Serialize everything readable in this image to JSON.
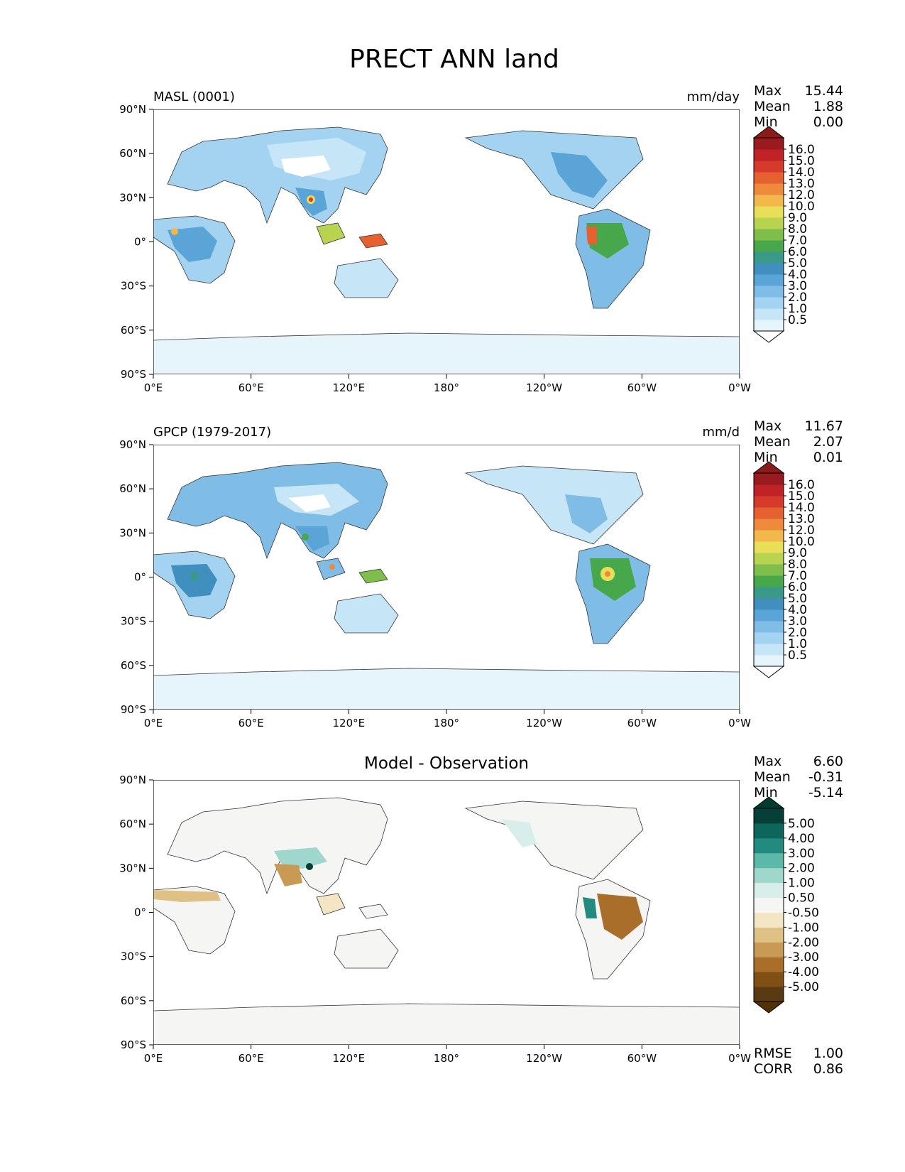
{
  "page": {
    "title": "PRECT ANN land"
  },
  "panels": [
    {
      "left_label": "MASL (0001)",
      "right_label": "mm/day",
      "title": "",
      "stats": [
        {
          "label": "Max",
          "value": "15.44"
        },
        {
          "label": "Mean",
          "value": "1.88"
        },
        {
          "label": "Min",
          "value": "0.00"
        }
      ],
      "colorbar": {
        "ticks": [
          "0.5",
          "1.0",
          "2.0",
          "3.0",
          "4.0",
          "5.0",
          "6.0",
          "7.0",
          "8.0",
          "9.0",
          "10.0",
          "12.0",
          "13.0",
          "14.0",
          "15.0",
          "16.0"
        ],
        "colors": [
          "#e6f4fb",
          "#c6e6f7",
          "#a3d3f0",
          "#7fbde6",
          "#5aa4d8",
          "#418fbf",
          "#3a9a8a",
          "#46a84b",
          "#7fbe4b",
          "#b8d34f",
          "#e9de58",
          "#f2b84b",
          "#ef8a3c",
          "#e5612f",
          "#d63a2a",
          "#c02227",
          "#9a1b1f"
        ],
        "under_color": "#ffffff",
        "over_color": "#8b1a1a"
      },
      "extra_stats": []
    },
    {
      "left_label": "GPCP (1979-2017)",
      "right_label": "mm/d",
      "title": "",
      "stats": [
        {
          "label": "Max",
          "value": "11.67"
        },
        {
          "label": "Mean",
          "value": "2.07"
        },
        {
          "label": "Min",
          "value": "0.01"
        }
      ],
      "colorbar": {
        "ticks": [
          "0.5",
          "1.0",
          "2.0",
          "3.0",
          "4.0",
          "5.0",
          "6.0",
          "7.0",
          "8.0",
          "9.0",
          "10.0",
          "12.0",
          "13.0",
          "14.0",
          "15.0",
          "16.0"
        ],
        "colors": [
          "#e6f4fb",
          "#c6e6f7",
          "#a3d3f0",
          "#7fbde6",
          "#5aa4d8",
          "#418fbf",
          "#3a9a8a",
          "#46a84b",
          "#7fbe4b",
          "#b8d34f",
          "#e9de58",
          "#f2b84b",
          "#ef8a3c",
          "#e5612f",
          "#d63a2a",
          "#c02227",
          "#9a1b1f"
        ],
        "under_color": "#ffffff",
        "over_color": "#8b1a1a"
      },
      "extra_stats": []
    },
    {
      "left_label": "",
      "right_label": "",
      "title": "Model - Observation",
      "stats": [
        {
          "label": "Max",
          "value": "6.60"
        },
        {
          "label": "Mean",
          "value": "-0.31"
        },
        {
          "label": "Min",
          "value": "-5.14"
        }
      ],
      "colorbar": {
        "ticks": [
          "-5.00",
          "-4.00",
          "-3.00",
          "-2.00",
          "-1.00",
          "-0.50",
          "0.50",
          "1.00",
          "2.00",
          "3.00",
          "4.00",
          "5.00"
        ],
        "colors": [
          "#5a3a12",
          "#7f4f14",
          "#a86e2a",
          "#c99a54",
          "#dfc185",
          "#f4e6c4",
          "#f5f5f3",
          "#d8eeea",
          "#9fd7cd",
          "#5cb8a8",
          "#238a7f",
          "#0c665c",
          "#053f37"
        ],
        "under_color": "#543005",
        "over_color": "#003c30"
      },
      "extra_stats": [
        {
          "label": "RMSE",
          "value": "1.00"
        },
        {
          "label": "CORR",
          "value": "0.86"
        }
      ]
    }
  ],
  "map": {
    "x_ticks": [
      "0°E",
      "60°E",
      "120°E",
      "180°",
      "120°W",
      "60°W",
      "0°W"
    ],
    "y_ticks": [
      "90°N",
      "60°N",
      "30°N",
      "0°",
      "30°S",
      "60°S",
      "90°S"
    ]
  },
  "chart_data": [
    {
      "type": "heatmap",
      "title": "MASL (0001)",
      "units": "mm/day",
      "xlim": [
        0,
        360
      ],
      "ylim": [
        -90,
        90
      ],
      "levels": [
        0.5,
        1.0,
        2.0,
        3.0,
        4.0,
        5.0,
        6.0,
        7.0,
        8.0,
        9.0,
        10.0,
        12.0,
        13.0,
        14.0,
        15.0,
        16.0
      ],
      "stats": {
        "max": 15.44,
        "mean": 1.88,
        "min": 0.0
      }
    },
    {
      "type": "heatmap",
      "title": "GPCP (1979-2017)",
      "units": "mm/d",
      "xlim": [
        0,
        360
      ],
      "ylim": [
        -90,
        90
      ],
      "levels": [
        0.5,
        1.0,
        2.0,
        3.0,
        4.0,
        5.0,
        6.0,
        7.0,
        8.0,
        9.0,
        10.0,
        12.0,
        13.0,
        14.0,
        15.0,
        16.0
      ],
      "stats": {
        "max": 11.67,
        "mean": 2.07,
        "min": 0.01
      }
    },
    {
      "type": "heatmap",
      "title": "Model - Observation",
      "xlim": [
        0,
        360
      ],
      "ylim": [
        -90,
        90
      ],
      "levels": [
        -5.0,
        -4.0,
        -3.0,
        -2.0,
        -1.0,
        -0.5,
        0.5,
        1.0,
        2.0,
        3.0,
        4.0,
        5.0
      ],
      "stats": {
        "max": 6.6,
        "mean": -0.31,
        "min": -5.14,
        "rmse": 1.0,
        "corr": 0.86
      }
    }
  ]
}
